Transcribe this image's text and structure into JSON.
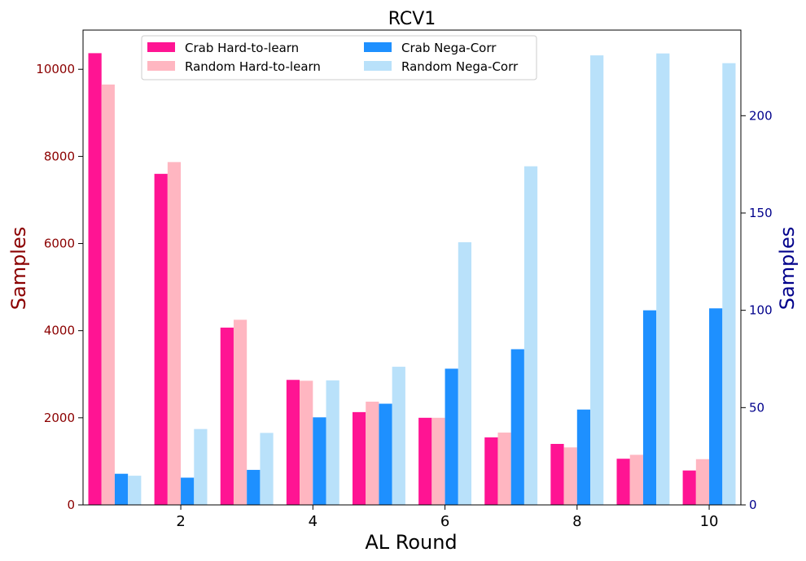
{
  "chart_data": {
    "type": "bar",
    "title": "RCV1",
    "xlabel": "AL Round",
    "ylabel_left": "Samples",
    "ylabel_right": "Samples",
    "ylabel_left_color": "#8b0000",
    "ylabel_right_color": "#00008b",
    "rounds": [
      1,
      2,
      3,
      4,
      5,
      6,
      7,
      8,
      9,
      10
    ],
    "xticks": [
      "2",
      "4",
      "6",
      "8",
      "10"
    ],
    "xtick_rounds": [
      2,
      4,
      6,
      8,
      10
    ],
    "ylim_left": [
      0,
      10900
    ],
    "yticks_left": [
      "0",
      "2000",
      "4000",
      "6000",
      "8000",
      "10000"
    ],
    "yticks_left_values": [
      0,
      2000,
      4000,
      6000,
      8000,
      10000
    ],
    "ylim_right": [
      0,
      244
    ],
    "yticks_right": [
      "0",
      "50",
      "100",
      "150",
      "200"
    ],
    "yticks_right_values": [
      0,
      50,
      100,
      150,
      200
    ],
    "legend_position": "top-center",
    "series": [
      {
        "name": "Crab Hard-to-learn",
        "axis": "left",
        "color": "#ff1493",
        "values": [
          10370,
          7600,
          4070,
          2870,
          2130,
          2000,
          1550,
          1400,
          1060,
          790
        ]
      },
      {
        "name": "Random Hard-to-learn",
        "axis": "left",
        "color": "#ffb6c1",
        "values": [
          9650,
          7870,
          4250,
          2850,
          2370,
          2000,
          1660,
          1320,
          1150,
          1050
        ]
      },
      {
        "name": "Crab Nega-Corr",
        "axis": "right",
        "color": "#1e90ff",
        "values": [
          16,
          14,
          18,
          45,
          52,
          70,
          80,
          49,
          100,
          101
        ]
      },
      {
        "name": "Random Nega-Corr",
        "axis": "right",
        "color": "#b9e1fa",
        "values": [
          15,
          39,
          37,
          64,
          71,
          135,
          174,
          231,
          232,
          227
        ]
      }
    ]
  }
}
